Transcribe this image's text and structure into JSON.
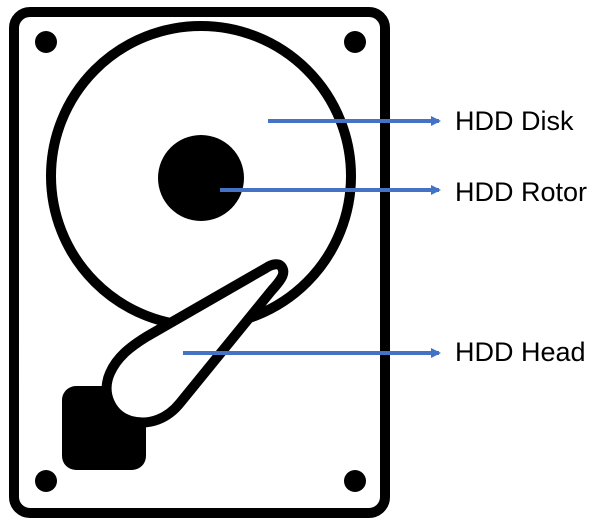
{
  "labels": {
    "disk": "HDD Disk",
    "rotor": "HDD Rotor",
    "head": "HDD Head"
  },
  "icons": {
    "drive": "hard-disk-drive-icon"
  },
  "colors": {
    "outline": "#000000",
    "arrow": "#4472C4",
    "background": "#ffffff"
  }
}
